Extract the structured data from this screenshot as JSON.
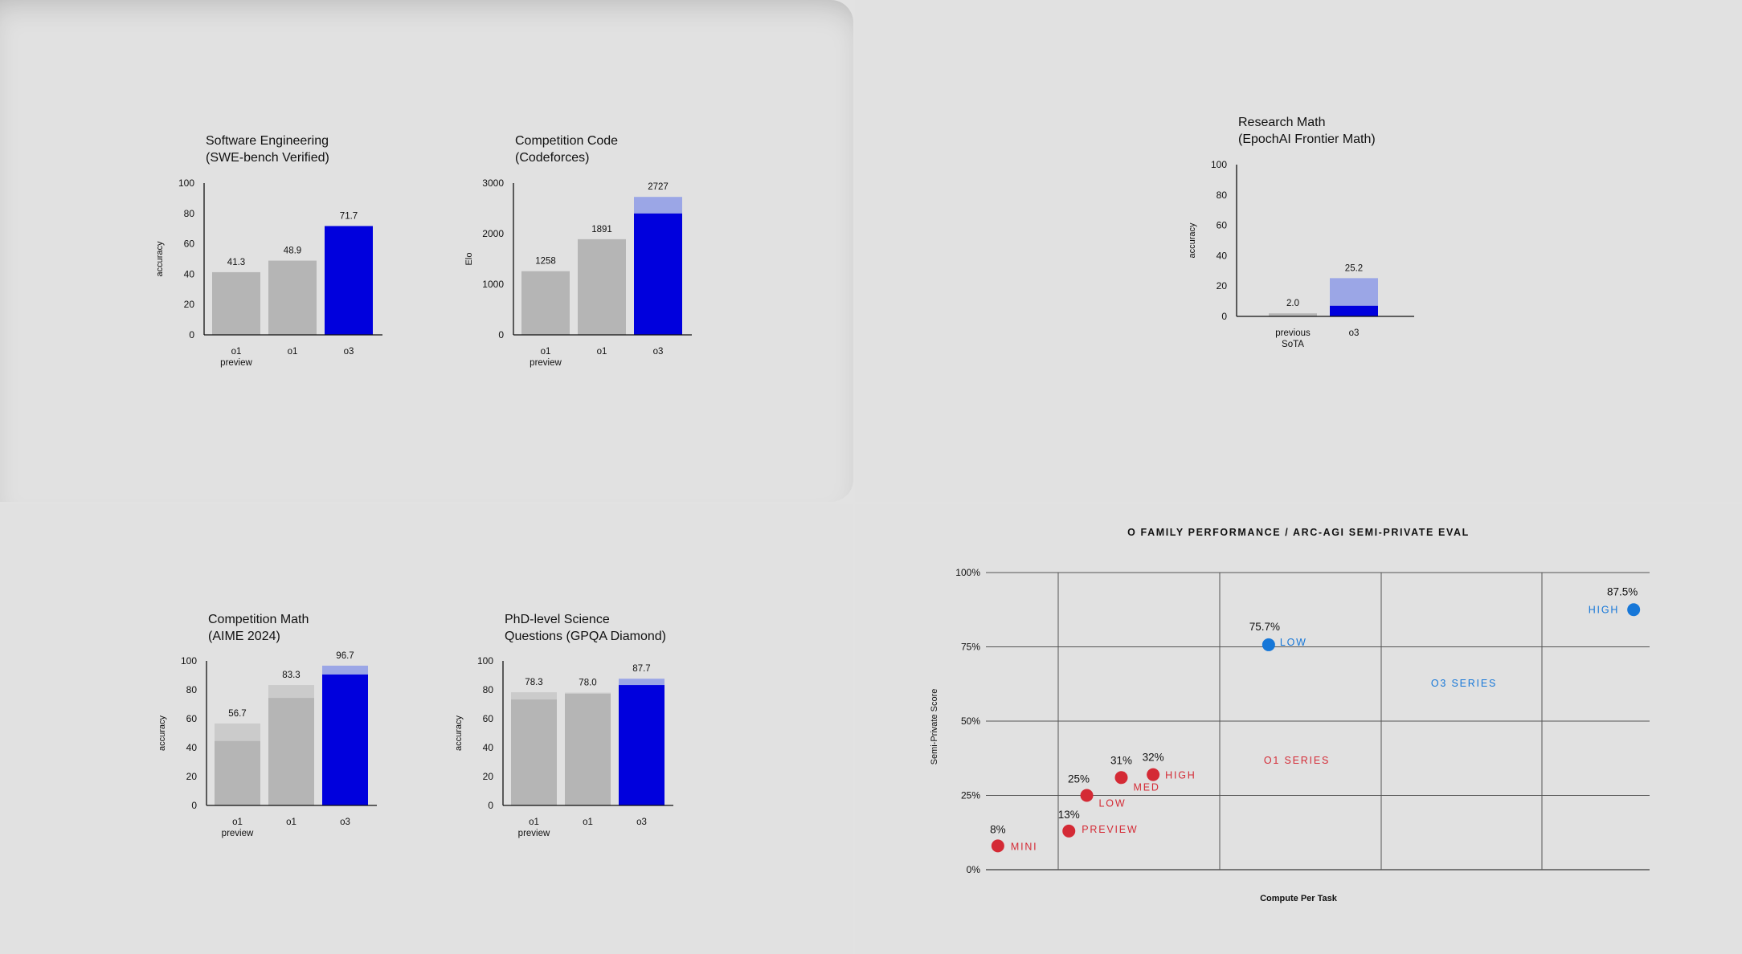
{
  "colors": {
    "background": "#e1e1e1",
    "grey_bar": "#b5b5b5",
    "grey_bar_light": "#cbcbcb",
    "blue_bar": "#0000dd",
    "blue_bar_light": "#9ba6e6",
    "o1_series": "#d42a35",
    "o3_series": "#1677d8"
  },
  "chart_data": [
    {
      "id": "swe",
      "type": "bar",
      "title": [
        "Software Engineering",
        "(SWE-bench Verified)"
      ],
      "ylabel": "accuracy",
      "ylim": [
        0,
        100
      ],
      "yticks": [
        0,
        20,
        40,
        60,
        80,
        100
      ],
      "categories": [
        [
          "o1",
          "preview"
        ],
        [
          "o1"
        ],
        [
          "o3"
        ]
      ],
      "values": [
        41.3,
        48.9,
        71.7
      ],
      "value_labels": [
        "41.3",
        "48.9",
        "71.7"
      ],
      "base_values": [
        41.3,
        48.9,
        71.7
      ],
      "highlight_index": 2
    },
    {
      "id": "codeforces",
      "type": "bar",
      "title": [
        "Competition Code",
        "(Codeforces)"
      ],
      "ylabel": "Elo",
      "ylim": [
        0,
        3000
      ],
      "yticks": [
        0,
        1000,
        2000,
        3000
      ],
      "categories": [
        [
          "o1",
          "preview"
        ],
        [
          "o1"
        ],
        [
          "o3"
        ]
      ],
      "values": [
        1258,
        1891,
        2727
      ],
      "value_labels": [
        "1258",
        "1891",
        "2727"
      ],
      "base_values": [
        1258,
        1891,
        2400
      ],
      "highlight_index": 2
    },
    {
      "id": "frontiermath",
      "type": "bar",
      "title": [
        "Research Math",
        "(EpochAI Frontier Math)"
      ],
      "ylabel": "accuracy",
      "ylim": [
        0,
        100
      ],
      "yticks": [
        0,
        20,
        40,
        60,
        80,
        100
      ],
      "categories": [
        [
          "previous",
          "SoTA"
        ],
        [
          "o3"
        ]
      ],
      "values": [
        2.0,
        25.2
      ],
      "value_labels": [
        "2.0",
        "25.2"
      ],
      "base_values": [
        2.0,
        7.0
      ],
      "highlight_index": 1
    },
    {
      "id": "aime",
      "type": "bar",
      "title": [
        "Competition Math",
        "(AIME 2024)"
      ],
      "ylabel": "accuracy",
      "ylim": [
        0,
        100
      ],
      "yticks": [
        0,
        20,
        40,
        60,
        80,
        100
      ],
      "categories": [
        [
          "o1",
          "preview"
        ],
        [
          "o1"
        ],
        [
          "o3"
        ]
      ],
      "values": [
        56.7,
        83.3,
        96.7
      ],
      "value_labels": [
        "56.7",
        "83.3",
        "96.7"
      ],
      "base_values": [
        44.6,
        74.4,
        90.6
      ],
      "highlight_index": 2
    },
    {
      "id": "gpqa",
      "type": "bar",
      "title": [
        "PhD-level Science",
        "Questions (GPQA Diamond)"
      ],
      "ylabel": "accuracy",
      "ylim": [
        0,
        100
      ],
      "yticks": [
        0,
        20,
        40,
        60,
        80,
        100
      ],
      "categories": [
        [
          "o1",
          "preview"
        ],
        [
          "o1"
        ],
        [
          "o3"
        ]
      ],
      "values": [
        78.3,
        78.0,
        87.7
      ],
      "value_labels": [
        "78.3",
        "78.0",
        "87.7"
      ],
      "base_values": [
        73.3,
        77.3,
        83.3
      ],
      "highlight_index": 2
    },
    {
      "id": "arcagi",
      "type": "scatter",
      "title": "O FAMILY PERFORMANCE / ARC-AGI SEMI-PRIVATE EVAL",
      "xlabel": "Compute Per Task",
      "ylabel": "Semi-Private Score",
      "ylim": [
        0,
        100
      ],
      "yticks": [
        "0%",
        "25%",
        "50%",
        "75%",
        "100%"
      ],
      "xlim": [
        0,
        100
      ],
      "series": [
        {
          "name": "O1 SERIES",
          "points": [
            {
              "label": "MINI",
              "value_label": "8%",
              "x": 1.8,
              "y": 8
            },
            {
              "label": "PREVIEW",
              "value_label": "13%",
              "x": 12.5,
              "y": 13
            },
            {
              "label": "LOW",
              "value_label": "25%",
              "x": 15.2,
              "y": 25
            },
            {
              "label": "MED",
              "value_label": "31%",
              "x": 20.4,
              "y": 31
            },
            {
              "label": "HIGH",
              "value_label": "32%",
              "x": 25.2,
              "y": 32
            }
          ]
        },
        {
          "name": "O3 SERIES",
          "points": [
            {
              "label": "LOW",
              "value_label": "75.7%",
              "x": 42.6,
              "y": 75.7
            },
            {
              "label": "HIGH",
              "value_label": "87.5%",
              "x": 97.6,
              "y": 87.5
            }
          ]
        }
      ]
    }
  ]
}
